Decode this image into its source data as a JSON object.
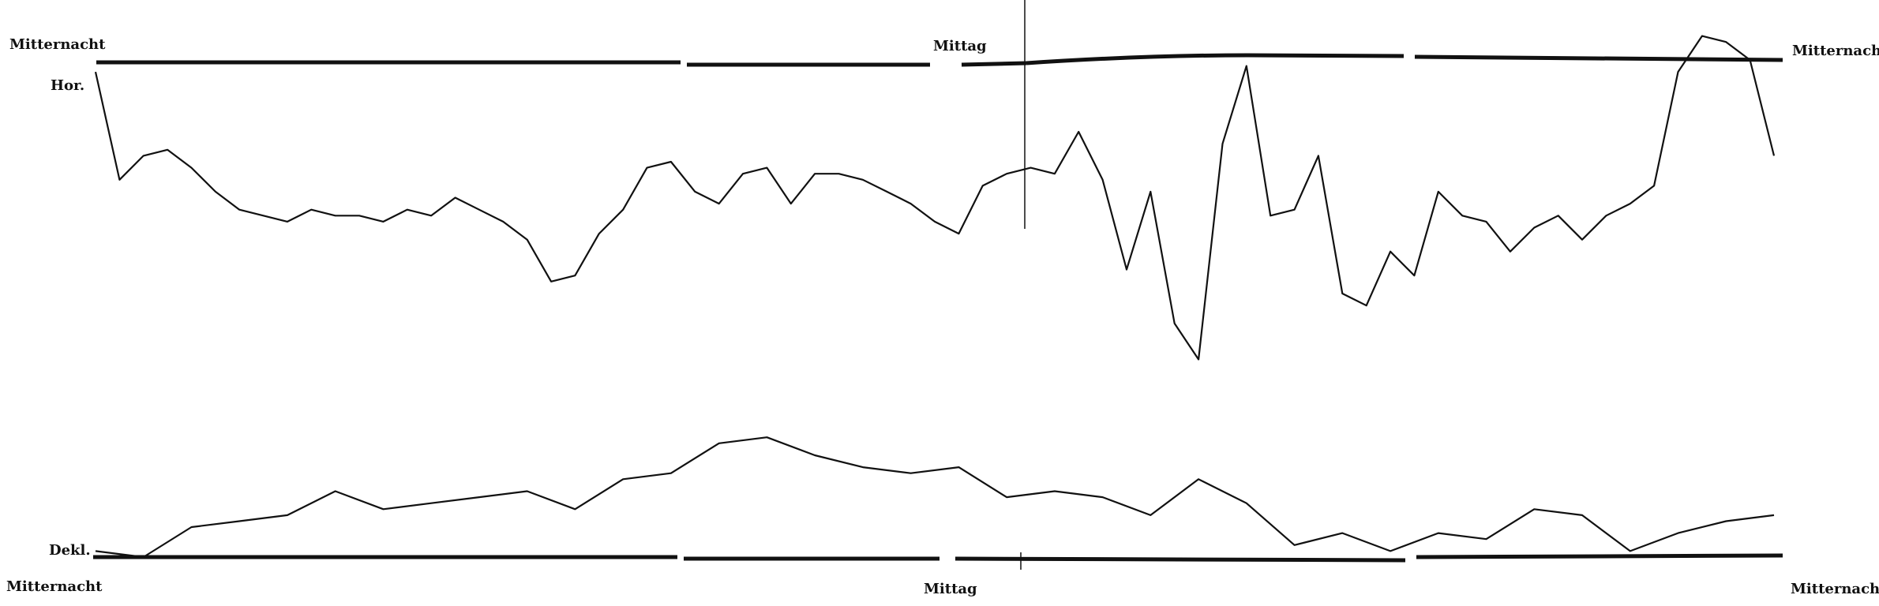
{
  "labels": {
    "top_left": "Mitternacht",
    "top_center": "Mittag",
    "top_right": "Mitternacht",
    "bottom_left": "Mitternacht",
    "bottom_center": "Mittag",
    "bottom_right": "Mitternacht"
  },
  "traces": [
    {
      "label": "Hor.",
      "values": [
        -8,
        -98,
        -78,
        -73,
        -88,
        -108,
        -123,
        -128,
        -133,
        -123,
        -128,
        -128,
        -133,
        -123,
        -128,
        -113,
        -123,
        -133,
        -148,
        -183,
        -178,
        -143,
        -123,
        -88,
        -83,
        -108,
        -118,
        -93,
        -88,
        -118,
        -93,
        -93,
        -98,
        -108,
        -118,
        -133,
        -143,
        -103,
        -93,
        -88,
        -93,
        -58,
        -98,
        -173,
        -108,
        -218,
        -248,
        -68,
        -3,
        -128,
        -123,
        -78,
        -193,
        -203,
        -158,
        -178,
        -108,
        -128,
        -133,
        -158,
        -138,
        -128,
        -148,
        -128,
        -118,
        -103,
        -8,
        22,
        17,
        2,
        -78
      ]
    },
    {
      "label": "Dekl.",
      "values": [
        5,
        0,
        25,
        30,
        35,
        55,
        40,
        45,
        50,
        55,
        40,
        65,
        70,
        95,
        100,
        85,
        75,
        70,
        75,
        50,
        55,
        50,
        35,
        65,
        45,
        10,
        20,
        5,
        20,
        15,
        40,
        35,
        5,
        20,
        30,
        35
      ]
    }
  ]
}
